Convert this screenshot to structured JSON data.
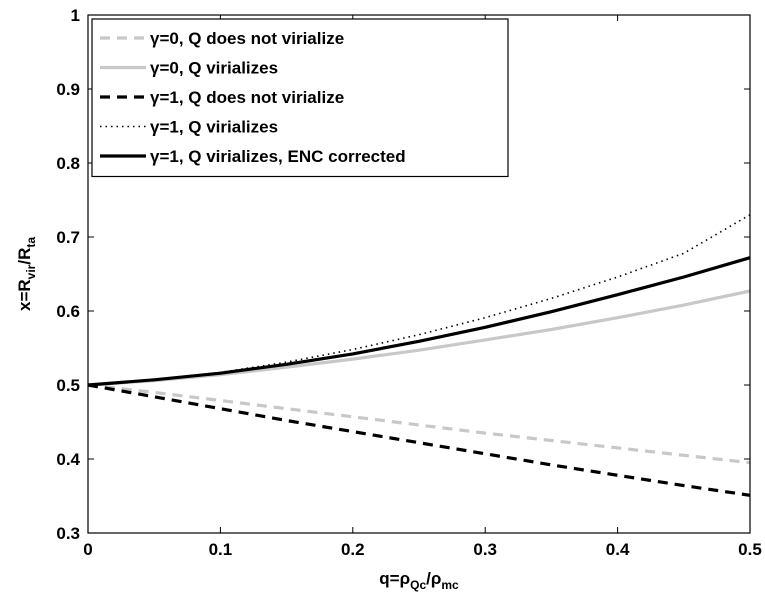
{
  "chart_data": {
    "type": "line",
    "title": "",
    "xlabel": {
      "main": "q=ρ",
      "sub1": "Qc",
      "mid": "/ρ",
      "sub2": "mc"
    },
    "ylabel": {
      "main": "x=R",
      "sub1": "vir",
      "mid": "/R",
      "sub2": "ta"
    },
    "xlim": [
      0,
      0.5
    ],
    "ylim": [
      0.3,
      1
    ],
    "xticks": [
      0,
      0.1,
      0.2,
      0.3,
      0.4,
      0.5
    ],
    "xtick_labels": [
      "0",
      "0.1",
      "0.2",
      "0.3",
      "0.4",
      "0.5"
    ],
    "yticks": [
      0.3,
      0.4,
      0.5,
      0.6,
      0.7,
      0.8,
      0.9,
      1
    ],
    "ytick_labels": [
      "0.3",
      "0.4",
      "0.5",
      "0.6",
      "0.7",
      "0.8",
      "0.9",
      "1"
    ],
    "grid": false,
    "legend_position": "top-left",
    "x": [
      0,
      0.05,
      0.1,
      0.15,
      0.2,
      0.25,
      0.3,
      0.35,
      0.4,
      0.45,
      0.5
    ],
    "series": [
      {
        "name": "γ=0, Q does not virialize",
        "color": "#c8c8c8",
        "style": "dashed",
        "values": [
          0.5,
          0.49,
          0.479,
          0.468,
          0.457,
          0.446,
          0.435,
          0.425,
          0.415,
          0.405,
          0.395
        ]
      },
      {
        "name": "γ=0, Q virializes",
        "color": "#c8c8c8",
        "style": "solid",
        "values": [
          0.5,
          0.506,
          0.514,
          0.524,
          0.535,
          0.547,
          0.561,
          0.575,
          0.591,
          0.608,
          0.627
        ]
      },
      {
        "name": "γ=1, Q does not virialize",
        "color": "#000000",
        "style": "dashed",
        "values": [
          0.5,
          0.484,
          0.468,
          0.452,
          0.437,
          0.422,
          0.407,
          0.392,
          0.378,
          0.364,
          0.351
        ]
      },
      {
        "name": "γ=1, Q virializes",
        "color": "#000000",
        "style": "dotted",
        "values": [
          0.5,
          0.507,
          0.517,
          0.531,
          0.548,
          0.568,
          0.591,
          0.617,
          0.646,
          0.678,
          0.73
        ]
      },
      {
        "name": "γ=1, Q virializes, ENC corrected",
        "color": "#000000",
        "style": "solid",
        "values": [
          0.5,
          0.507,
          0.516,
          0.528,
          0.542,
          0.559,
          0.578,
          0.599,
          0.622,
          0.646,
          0.672
        ]
      }
    ]
  }
}
